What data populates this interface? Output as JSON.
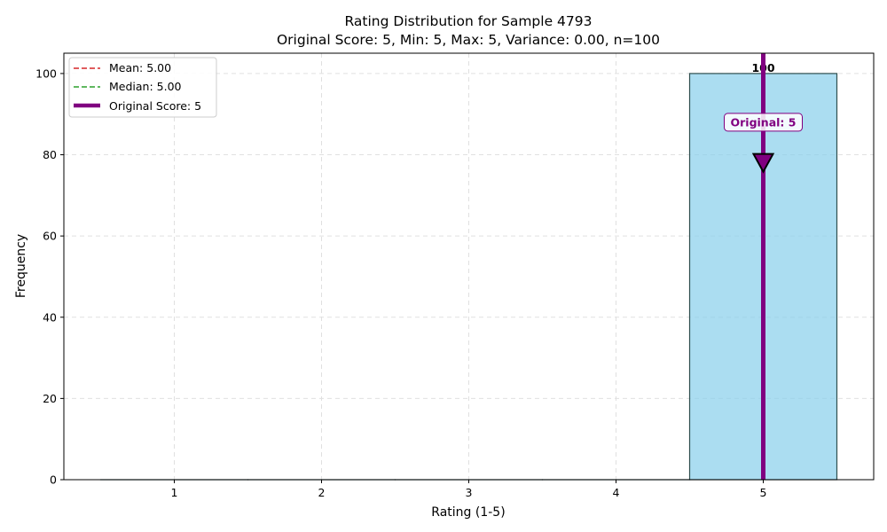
{
  "chart_data": {
    "type": "bar",
    "title": "Rating Distribution for Sample 4793",
    "subtitle": "Original Score: 5, Min: 5, Max: 5, Variance: 0.00, n=100",
    "xlabel": "Rating (1-5)",
    "ylabel": "Frequency",
    "categories": [
      1,
      2,
      3,
      4,
      5
    ],
    "values": [
      0,
      0,
      0,
      0,
      100
    ],
    "xlim": [
      0.25,
      5.75
    ],
    "ylim": [
      0,
      105
    ],
    "xticks": [
      1,
      2,
      3,
      4,
      5
    ],
    "yticks": [
      0,
      20,
      40,
      60,
      80,
      100
    ],
    "grid": true,
    "legend_position": "top-left",
    "bar_color": "#87ceeb",
    "bar_edge_color": "#2f4f4f",
    "bar_labels": [
      {
        "x": 5,
        "text": "100"
      }
    ],
    "reference_lines": [
      {
        "name": "mean",
        "label": "Mean: 5.00",
        "x": 5.0,
        "color": "#d62728",
        "style": "dashed"
      },
      {
        "name": "median",
        "label": "Median: 5.00",
        "x": 5.0,
        "color": "#2ca02c",
        "style": "dashed"
      },
      {
        "name": "original",
        "label": "Original Score: 5",
        "x": 5,
        "color": "#800080",
        "style": "solid"
      }
    ],
    "annotation": {
      "text": "Original: 5",
      "x": 5,
      "y": 88,
      "arrow_to_y": 78,
      "color": "#800080"
    }
  }
}
